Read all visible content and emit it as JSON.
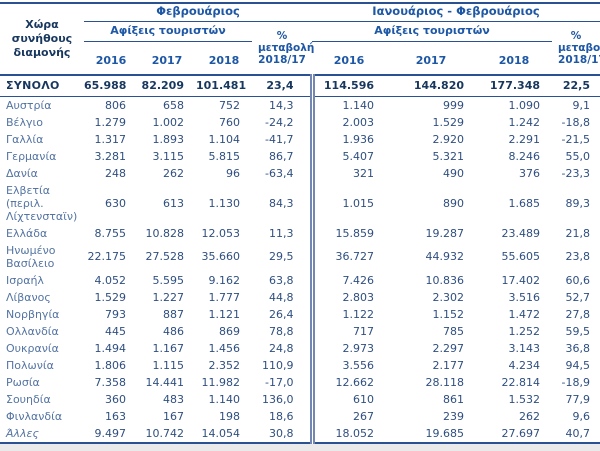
{
  "chart_data": {
    "type": "table",
    "row_header": "Χώρα συνήθους διαμονής",
    "sections": [
      {
        "title": "Φεβρουάριος",
        "arrivals_label": "Αφίξεις τουριστών",
        "years": [
          "2016",
          "2017",
          "2018"
        ],
        "change_label": "% μεταβολή 2018/17"
      },
      {
        "title": "Ιανουάριος - Φεβρουάριος",
        "arrivals_label": "Αφίξεις τουριστών",
        "years": [
          "2016",
          "2017",
          "2018"
        ],
        "change_label": "% μεταβολή 2018/17"
      }
    ],
    "total": {
      "label": "ΣΥΝΟΛΟ",
      "feb": [
        "65.988",
        "82.209",
        "101.481",
        "23,4"
      ],
      "janfeb": [
        "114.596",
        "144.820",
        "177.348",
        "22,5"
      ]
    },
    "rows": [
      {
        "country": "Αυστρία",
        "feb": [
          "806",
          "658",
          "752",
          "14,3"
        ],
        "janfeb": [
          "1.140",
          "999",
          "1.090",
          "9,1"
        ]
      },
      {
        "country": "Βέλγιο",
        "feb": [
          "1.279",
          "1.002",
          "760",
          "-24,2"
        ],
        "janfeb": [
          "2.003",
          "1.529",
          "1.242",
          "-18,8"
        ]
      },
      {
        "country": "Γαλλία",
        "feb": [
          "1.317",
          "1.893",
          "1.104",
          "-41,7"
        ],
        "janfeb": [
          "1.936",
          "2.920",
          "2.291",
          "-21,5"
        ]
      },
      {
        "country": "Γερμανία",
        "feb": [
          "3.281",
          "3.115",
          "5.815",
          "86,7"
        ],
        "janfeb": [
          "5.407",
          "5.321",
          "8.246",
          "55,0"
        ]
      },
      {
        "country": "Δανία",
        "feb": [
          "248",
          "262",
          "96",
          "-63,4"
        ],
        "janfeb": [
          "321",
          "490",
          "376",
          "-23,3"
        ]
      },
      {
        "country": "Ελβετία (περιλ. Λίχτενσταϊν)",
        "feb": [
          "630",
          "613",
          "1.130",
          "84,3"
        ],
        "janfeb": [
          "1.015",
          "890",
          "1.685",
          "89,3"
        ]
      },
      {
        "country": "Ελλάδα",
        "feb": [
          "8.755",
          "10.828",
          "12.053",
          "11,3"
        ],
        "janfeb": [
          "15.859",
          "19.287",
          "23.489",
          "21,8"
        ]
      },
      {
        "country": "Ηνωμένο Βασίλειο",
        "feb": [
          "22.175",
          "27.528",
          "35.660",
          "29,5"
        ],
        "janfeb": [
          "36.727",
          "44.932",
          "55.605",
          "23,8"
        ]
      },
      {
        "country": "Ισραήλ",
        "feb": [
          "4.052",
          "5.595",
          "9.162",
          "63,8"
        ],
        "janfeb": [
          "7.426",
          "10.836",
          "17.402",
          "60,6"
        ]
      },
      {
        "country": "Λίβανος",
        "feb": [
          "1.529",
          "1.227",
          "1.777",
          "44,8"
        ],
        "janfeb": [
          "2.803",
          "2.302",
          "3.516",
          "52,7"
        ]
      },
      {
        "country": "Νορβηγία",
        "feb": [
          "793",
          "887",
          "1.121",
          "26,4"
        ],
        "janfeb": [
          "1.122",
          "1.152",
          "1.472",
          "27,8"
        ]
      },
      {
        "country": "Ολλανδία",
        "feb": [
          "445",
          "486",
          "869",
          "78,8"
        ],
        "janfeb": [
          "717",
          "785",
          "1.252",
          "59,5"
        ]
      },
      {
        "country": "Ουκρανία",
        "feb": [
          "1.494",
          "1.167",
          "1.456",
          "24,8"
        ],
        "janfeb": [
          "2.973",
          "2.297",
          "3.143",
          "36,8"
        ]
      },
      {
        "country": "Πολωνία",
        "feb": [
          "1.806",
          "1.115",
          "2.352",
          "110,9"
        ],
        "janfeb": [
          "3.556",
          "2.177",
          "4.234",
          "94,5"
        ]
      },
      {
        "country": "Ρωσία",
        "feb": [
          "7.358",
          "14.441",
          "11.982",
          "-17,0"
        ],
        "janfeb": [
          "12.662",
          "28.118",
          "22.814",
          "-18,9"
        ]
      },
      {
        "country": "Σουηδία",
        "feb": [
          "360",
          "483",
          "1.140",
          "136,0"
        ],
        "janfeb": [
          "610",
          "861",
          "1.532",
          "77,9"
        ]
      },
      {
        "country": "Φινλανδία",
        "feb": [
          "163",
          "167",
          "198",
          "18,6"
        ],
        "janfeb": [
          "267",
          "239",
          "262",
          "9,6"
        ]
      },
      {
        "country": "Άλλες",
        "feb": [
          "9.497",
          "10.742",
          "14.054",
          "30,8"
        ],
        "janfeb": [
          "18.052",
          "19.685",
          "27.697",
          "40,7"
        ]
      }
    ],
    "colors": {
      "header_text": "#1d57a5",
      "number_text": "#2f4f80",
      "row_label_text": "#5474a3",
      "total_text": "#17375e",
      "border": "#2a5293"
    }
  }
}
